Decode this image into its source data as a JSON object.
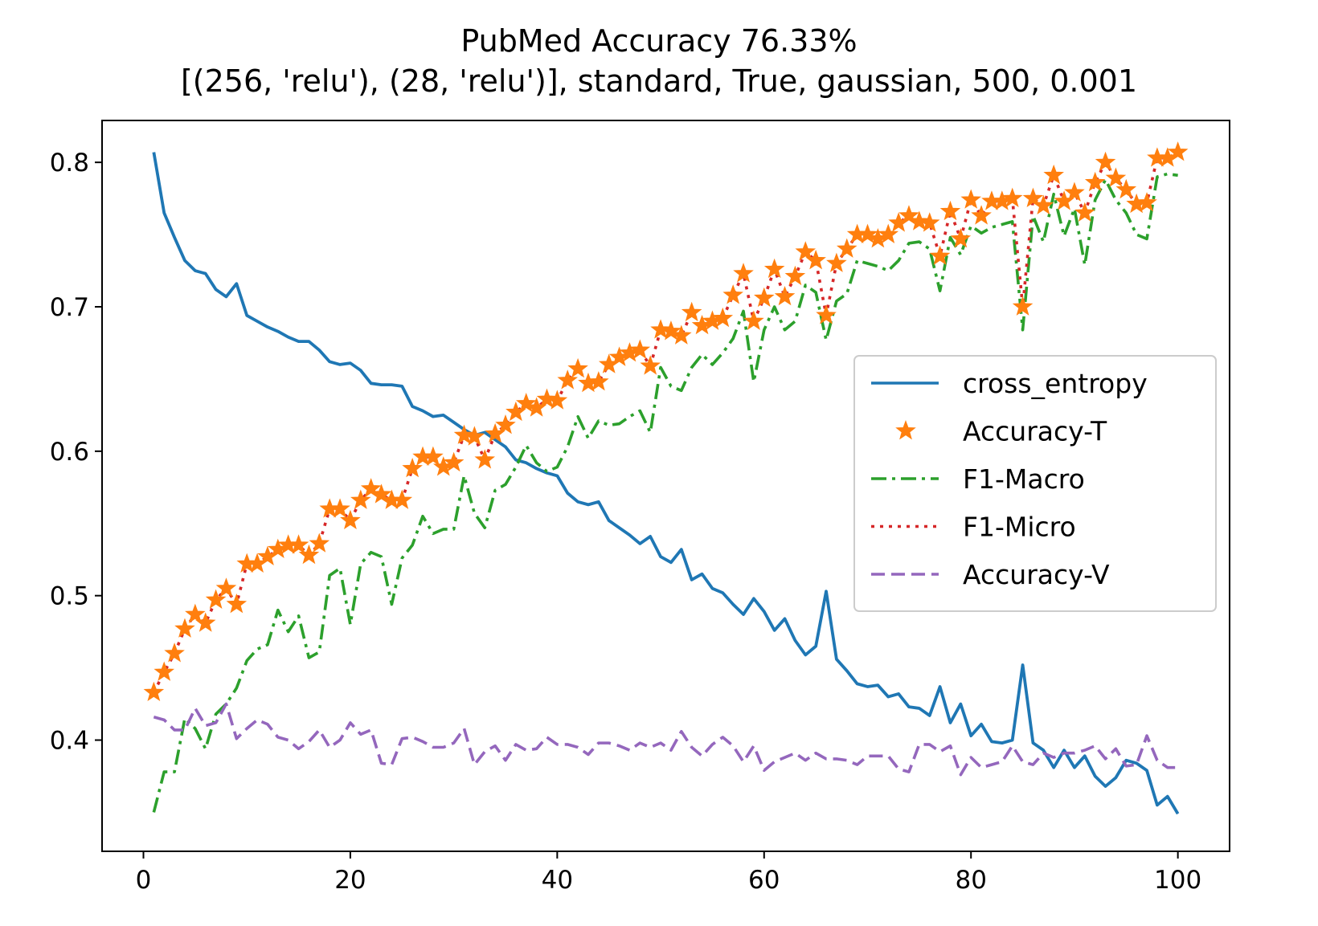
{
  "chart_data": {
    "type": "line",
    "title": "PubMed Accuracy 76.33%",
    "subtitle": "[(256, 'relu'), (28, 'relu')], standard, True, gaussian, 500, 0.001",
    "xlabel": "",
    "ylabel": "",
    "xlim": [
      -4,
      105
    ],
    "ylim": [
      0.323,
      0.829
    ],
    "xticks": [
      0,
      20,
      40,
      60,
      80,
      100
    ],
    "yticks": [
      0.4,
      0.5,
      0.6,
      0.7,
      0.8
    ],
    "xtick_labels": [
      "0",
      "20",
      "40",
      "60",
      "80",
      "100"
    ],
    "ytick_labels": [
      "0.4",
      "0.5",
      "0.6",
      "0.7",
      "0.8"
    ],
    "grid": false,
    "legend_position": "center-right",
    "x": [
      1,
      2,
      3,
      4,
      5,
      6,
      7,
      8,
      9,
      10,
      11,
      12,
      13,
      14,
      15,
      16,
      17,
      18,
      19,
      20,
      21,
      22,
      23,
      24,
      25,
      26,
      27,
      28,
      29,
      30,
      31,
      32,
      33,
      34,
      35,
      36,
      37,
      38,
      39,
      40,
      41,
      42,
      43,
      44,
      45,
      46,
      47,
      48,
      49,
      50,
      51,
      52,
      53,
      54,
      55,
      56,
      57,
      58,
      59,
      60,
      61,
      62,
      63,
      64,
      65,
      66,
      67,
      68,
      69,
      70,
      71,
      72,
      73,
      74,
      75,
      76,
      77,
      78,
      79,
      80,
      81,
      82,
      83,
      84,
      85,
      86,
      87,
      88,
      89,
      90,
      91,
      92,
      93,
      94,
      95,
      96,
      97,
      98,
      99,
      100
    ],
    "series": [
      {
        "name": "cross_entropy",
        "color": "#1f77b4",
        "style": "solid",
        "values": [
          0.807,
          0.765,
          0.748,
          0.732,
          0.725,
          0.723,
          0.712,
          0.707,
          0.716,
          0.694,
          0.69,
          0.686,
          0.683,
          0.679,
          0.676,
          0.676,
          0.67,
          0.662,
          0.66,
          0.661,
          0.656,
          0.647,
          0.646,
          0.646,
          0.645,
          0.631,
          0.628,
          0.624,
          0.625,
          0.62,
          0.615,
          0.611,
          0.613,
          0.608,
          0.603,
          0.594,
          0.592,
          0.588,
          0.585,
          0.583,
          0.571,
          0.565,
          0.563,
          0.565,
          0.552,
          0.547,
          0.542,
          0.536,
          0.541,
          0.527,
          0.523,
          0.532,
          0.511,
          0.515,
          0.505,
          0.502,
          0.494,
          0.487,
          0.498,
          0.489,
          0.476,
          0.484,
          0.469,
          0.459,
          0.465,
          0.503,
          0.456,
          0.448,
          0.439,
          0.437,
          0.438,
          0.43,
          0.432,
          0.423,
          0.422,
          0.417,
          0.437,
          0.412,
          0.425,
          0.403,
          0.411,
          0.399,
          0.398,
          0.4,
          0.452,
          0.398,
          0.393,
          0.381,
          0.393,
          0.381,
          0.389,
          0.375,
          0.368,
          0.374,
          0.386,
          0.384,
          0.379,
          0.355,
          0.361,
          0.349
        ]
      },
      {
        "name": "Accuracy-T",
        "color": "#ff7f0e",
        "style": "star",
        "values": [
          0.433,
          0.447,
          0.46,
          0.477,
          0.487,
          0.481,
          0.497,
          0.505,
          0.494,
          0.522,
          0.522,
          0.527,
          0.532,
          0.535,
          0.535,
          0.528,
          0.536,
          0.56,
          0.56,
          0.552,
          0.566,
          0.574,
          0.57,
          0.566,
          0.566,
          0.588,
          0.596,
          0.596,
          0.589,
          0.592,
          0.611,
          0.61,
          0.594,
          0.612,
          0.618,
          0.627,
          0.633,
          0.63,
          0.636,
          0.635,
          0.649,
          0.657,
          0.647,
          0.648,
          0.66,
          0.665,
          0.668,
          0.67,
          0.659,
          0.684,
          0.683,
          0.68,
          0.696,
          0.687,
          0.69,
          0.692,
          0.708,
          0.723,
          0.69,
          0.706,
          0.726,
          0.707,
          0.721,
          0.738,
          0.732,
          0.694,
          0.73,
          0.74,
          0.75,
          0.75,
          0.747,
          0.75,
          0.758,
          0.763,
          0.759,
          0.758,
          0.735,
          0.766,
          0.747,
          0.774,
          0.763,
          0.773,
          0.773,
          0.775,
          0.7,
          0.775,
          0.77,
          0.791,
          0.773,
          0.779,
          0.765,
          0.786,
          0.8,
          0.789,
          0.781,
          0.771,
          0.772,
          0.803,
          0.803,
          0.807
        ]
      },
      {
        "name": "F1-Macro",
        "color": "#2ca02c",
        "style": "dashdot",
        "values": [
          0.35,
          0.378,
          0.378,
          0.415,
          0.408,
          0.394,
          0.418,
          0.425,
          0.436,
          0.455,
          0.463,
          0.466,
          0.49,
          0.475,
          0.486,
          0.457,
          0.461,
          0.514,
          0.519,
          0.48,
          0.522,
          0.53,
          0.527,
          0.494,
          0.526,
          0.535,
          0.555,
          0.543,
          0.546,
          0.546,
          0.583,
          0.557,
          0.547,
          0.573,
          0.577,
          0.589,
          0.604,
          0.592,
          0.586,
          0.589,
          0.603,
          0.624,
          0.609,
          0.621,
          0.618,
          0.619,
          0.624,
          0.628,
          0.613,
          0.658,
          0.645,
          0.642,
          0.658,
          0.667,
          0.66,
          0.668,
          0.678,
          0.697,
          0.648,
          0.684,
          0.7,
          0.684,
          0.69,
          0.715,
          0.71,
          0.677,
          0.704,
          0.709,
          0.732,
          0.73,
          0.728,
          0.725,
          0.732,
          0.744,
          0.745,
          0.74,
          0.711,
          0.748,
          0.736,
          0.756,
          0.751,
          0.755,
          0.757,
          0.759,
          0.684,
          0.763,
          0.745,
          0.778,
          0.749,
          0.768,
          0.729,
          0.774,
          0.788,
          0.774,
          0.765,
          0.75,
          0.747,
          0.79,
          0.792,
          0.791
        ]
      },
      {
        "name": "F1-Micro",
        "color": "#d62728",
        "style": "dotted",
        "values": [
          0.433,
          0.447,
          0.46,
          0.477,
          0.487,
          0.481,
          0.497,
          0.505,
          0.494,
          0.522,
          0.522,
          0.527,
          0.532,
          0.535,
          0.535,
          0.528,
          0.536,
          0.56,
          0.56,
          0.552,
          0.566,
          0.574,
          0.57,
          0.566,
          0.566,
          0.588,
          0.596,
          0.596,
          0.589,
          0.592,
          0.611,
          0.61,
          0.594,
          0.612,
          0.618,
          0.627,
          0.633,
          0.63,
          0.636,
          0.635,
          0.649,
          0.657,
          0.647,
          0.648,
          0.66,
          0.665,
          0.668,
          0.67,
          0.659,
          0.684,
          0.683,
          0.68,
          0.696,
          0.687,
          0.69,
          0.692,
          0.708,
          0.723,
          0.69,
          0.706,
          0.726,
          0.707,
          0.721,
          0.738,
          0.732,
          0.694,
          0.73,
          0.74,
          0.75,
          0.75,
          0.747,
          0.75,
          0.758,
          0.763,
          0.759,
          0.758,
          0.735,
          0.766,
          0.747,
          0.774,
          0.763,
          0.773,
          0.773,
          0.775,
          0.7,
          0.775,
          0.77,
          0.791,
          0.773,
          0.779,
          0.765,
          0.786,
          0.8,
          0.789,
          0.781,
          0.771,
          0.772,
          0.803,
          0.803,
          0.807
        ]
      },
      {
        "name": "Accuracy-V",
        "color": "#9467bd",
        "style": "dashed",
        "values": [
          0.416,
          0.414,
          0.407,
          0.407,
          0.422,
          0.41,
          0.412,
          0.425,
          0.401,
          0.408,
          0.414,
          0.411,
          0.402,
          0.4,
          0.394,
          0.399,
          0.407,
          0.395,
          0.4,
          0.412,
          0.404,
          0.407,
          0.384,
          0.383,
          0.401,
          0.402,
          0.399,
          0.395,
          0.395,
          0.398,
          0.408,
          0.383,
          0.392,
          0.396,
          0.386,
          0.397,
          0.393,
          0.394,
          0.402,
          0.397,
          0.397,
          0.395,
          0.39,
          0.398,
          0.398,
          0.396,
          0.393,
          0.398,
          0.395,
          0.398,
          0.393,
          0.406,
          0.395,
          0.389,
          0.397,
          0.402,
          0.396,
          0.385,
          0.396,
          0.379,
          0.385,
          0.388,
          0.391,
          0.386,
          0.391,
          0.387,
          0.387,
          0.386,
          0.383,
          0.389,
          0.389,
          0.389,
          0.38,
          0.378,
          0.397,
          0.397,
          0.392,
          0.396,
          0.376,
          0.388,
          0.381,
          0.383,
          0.385,
          0.396,
          0.385,
          0.383,
          0.391,
          0.388,
          0.391,
          0.391,
          0.393,
          0.396,
          0.387,
          0.394,
          0.382,
          0.383,
          0.403,
          0.386,
          0.381,
          0.381
        ]
      }
    ]
  }
}
